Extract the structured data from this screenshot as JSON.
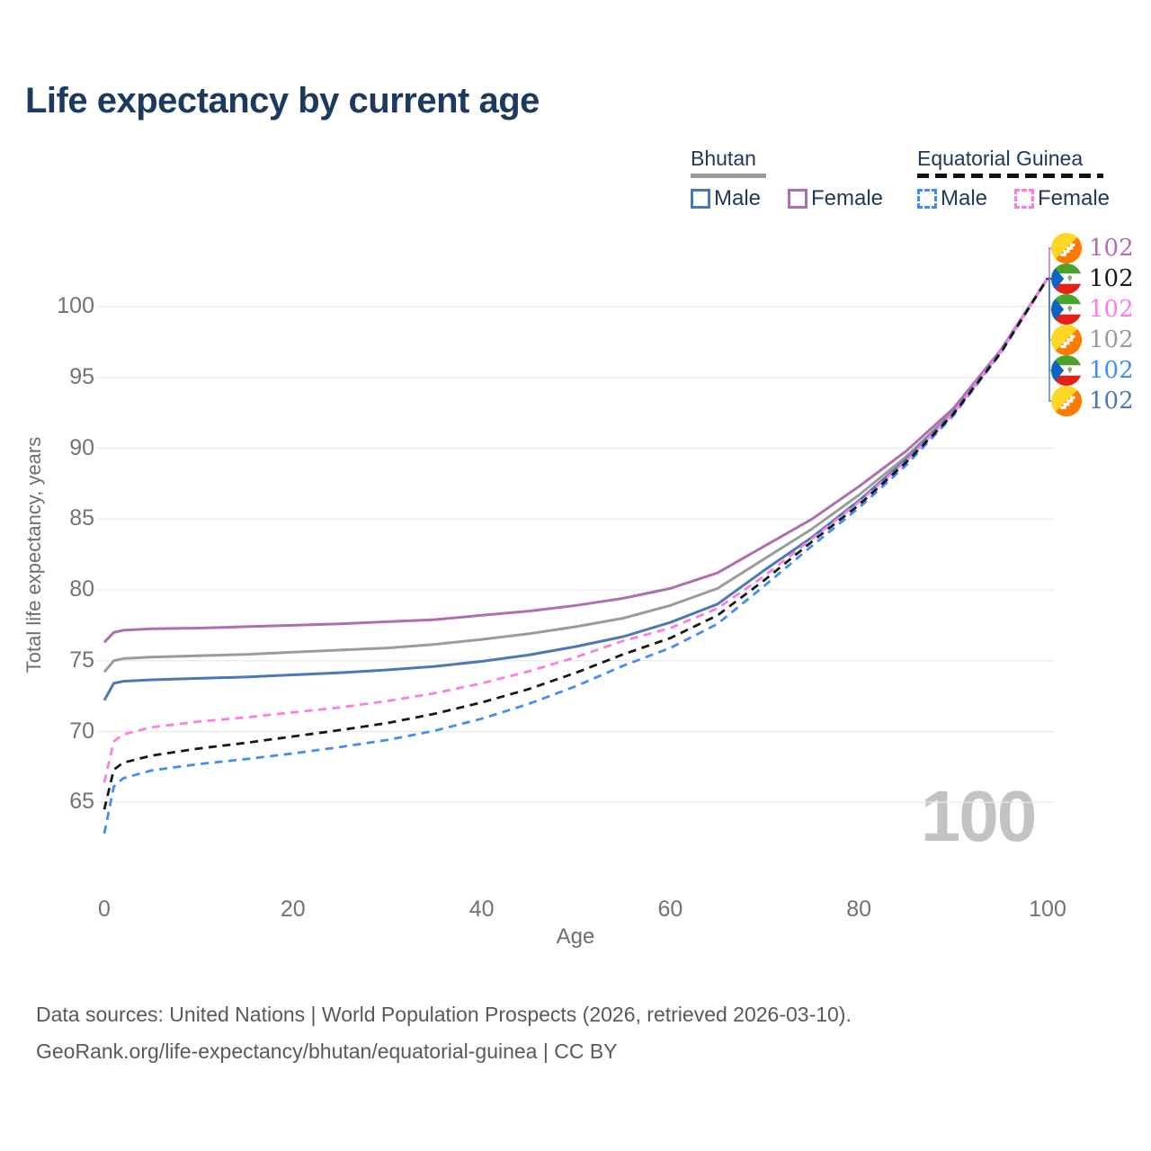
{
  "header": {
    "title": "Life expectancy by current age"
  },
  "legend": {
    "bhutan": "Bhutan",
    "equatorial_guinea": "Equatorial Guinea",
    "male": "Male",
    "female": "Female"
  },
  "chart_data": {
    "type": "line",
    "title": "Life expectancy by current age",
    "xlabel": "Age",
    "ylabel": "Total life expectancy, years",
    "xlim": [
      0,
      100
    ],
    "ylim": [
      62,
      102.5
    ],
    "xticks": [
      0,
      20,
      40,
      60,
      80,
      100
    ],
    "yticks": [
      65,
      70,
      75,
      80,
      85,
      90,
      95,
      100
    ],
    "grid": "horizontal",
    "legend_position": "top-right",
    "watermark": "100",
    "x": [
      0,
      1,
      2,
      5,
      10,
      15,
      20,
      25,
      30,
      35,
      40,
      45,
      50,
      55,
      60,
      65,
      70,
      75,
      80,
      85,
      90,
      95,
      100
    ],
    "series": [
      {
        "name": "Bhutan Male",
        "country": "Bhutan",
        "sex": "male",
        "style": "solid",
        "color": "#4a79b8",
        "end_label": "102",
        "values": [
          72.2,
          73.4,
          73.55,
          73.65,
          73.75,
          73.85,
          74.0,
          74.15,
          74.35,
          74.6,
          74.95,
          75.4,
          76.0,
          76.7,
          77.7,
          79.0,
          81.4,
          83.7,
          86.3,
          89.2,
          92.5,
          96.8,
          102
        ]
      },
      {
        "name": "Bhutan Female",
        "country": "Bhutan",
        "sex": "female",
        "style": "solid",
        "color": "#b06eb0",
        "end_label": "102",
        "values": [
          76.3,
          77.0,
          77.15,
          77.25,
          77.3,
          77.4,
          77.5,
          77.6,
          77.75,
          77.9,
          78.2,
          78.5,
          78.9,
          79.4,
          80.1,
          81.2,
          83.1,
          85.0,
          87.3,
          89.8,
          92.8,
          96.9,
          102
        ]
      },
      {
        "name": "Bhutan Both sexes",
        "country": "Bhutan",
        "sex": "both",
        "style": "solid",
        "color": "#9b9b9b",
        "end_label": "102",
        "values": [
          74.2,
          75.0,
          75.15,
          75.25,
          75.35,
          75.45,
          75.6,
          75.75,
          75.9,
          76.15,
          76.5,
          76.9,
          77.4,
          78.0,
          78.9,
          80.1,
          82.2,
          84.3,
          86.7,
          89.4,
          92.6,
          96.8,
          102
        ]
      },
      {
        "name": "Equatorial Guinea Male",
        "country": "Equatorial Guinea",
        "sex": "male",
        "style": "dashed",
        "color": "#3f8ef8",
        "end_label": "102",
        "values": [
          62.8,
          66.1,
          66.7,
          67.25,
          67.7,
          68.05,
          68.45,
          68.9,
          69.4,
          70.05,
          70.9,
          71.95,
          73.2,
          74.65,
          75.9,
          77.6,
          80.3,
          83.1,
          85.8,
          88.8,
          92.3,
          96.7,
          102
        ]
      },
      {
        "name": "Equatorial Guinea Female",
        "country": "Equatorial Guinea",
        "sex": "female",
        "style": "dashed",
        "color": "#ff7ce6",
        "end_label": "102",
        "values": [
          66.4,
          69.3,
          69.8,
          70.3,
          70.7,
          71.0,
          71.35,
          71.7,
          72.15,
          72.7,
          73.4,
          74.25,
          75.25,
          76.4,
          77.3,
          78.7,
          81.0,
          83.6,
          86.2,
          89.1,
          92.5,
          96.8,
          102
        ]
      },
      {
        "name": "Equatorial Guinea Both sexes",
        "country": "Equatorial Guinea",
        "sex": "both",
        "style": "dashed",
        "color": "#181818",
        "end_label": "102",
        "values": [
          64.5,
          67.3,
          67.8,
          68.3,
          68.8,
          69.2,
          69.65,
          70.1,
          70.6,
          71.25,
          72.05,
          73.0,
          74.15,
          75.45,
          76.6,
          78.2,
          80.7,
          83.4,
          86.0,
          89.0,
          92.4,
          96.7,
          102
        ]
      }
    ],
    "end_labels": [
      {
        "series": 1,
        "value": "102"
      },
      {
        "series": 5,
        "value": "102"
      },
      {
        "series": 4,
        "value": "102"
      },
      {
        "series": 2,
        "value": "102"
      },
      {
        "series": 3,
        "value": "102"
      },
      {
        "series": 0,
        "value": "102"
      }
    ]
  },
  "footer": {
    "line1": "Data sources: United Nations | World Population Prospects (2026, retrieved 2026-03-10).",
    "line2": "GeoRank.org/life-expectancy/bhutan/equatorial-guinea | CC BY"
  }
}
